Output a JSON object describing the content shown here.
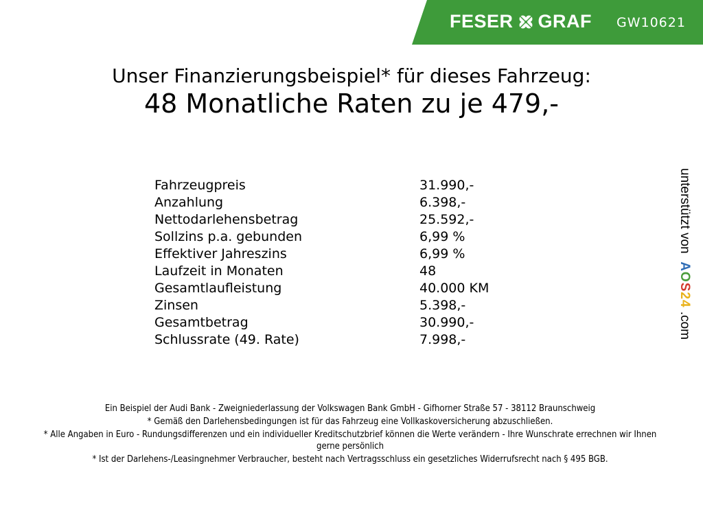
{
  "header": {
    "brand": "FESER GRAF",
    "brand_left": "FESER",
    "brand_right": "GRAF",
    "code": "GW10621",
    "brand_color": "#3e9b3a",
    "icon": "clover-icon"
  },
  "title": {
    "line1": "Unser Finanzierungsbeispiel* für dieses Fahrzeug:",
    "line2": "48 Monatliche Raten zu je 479,-"
  },
  "rows": [
    {
      "label": "Fahrzeugpreis",
      "value": "31.990,-"
    },
    {
      "label": "Anzahlung",
      "value": "6.398,-"
    },
    {
      "label": "Nettodarlehensbetrag",
      "value": "25.592,-"
    },
    {
      "label": "Sollzins p.a. gebunden",
      "value": "6,99 %"
    },
    {
      "label": "Effektiver Jahreszins",
      "value": "6,99 %"
    },
    {
      "label": "Laufzeit in Monaten",
      "value": "48"
    },
    {
      "label": "Gesamtlaufleistung",
      "value": "40.000 KM"
    },
    {
      "label": "Zinsen",
      "value": "5.398,-"
    },
    {
      "label": "Gesamtbetrag",
      "value": "30.990,-"
    },
    {
      "label": "Schlussrate (49. Rate)",
      "value": "7.998,-"
    }
  ],
  "side": {
    "prefix": "unterstützt von",
    "a": "A",
    "o": "O",
    "s": "S",
    "n2": "2",
    "n4": "4",
    "suffix": ".com"
  },
  "footer": [
    "Ein Beispiel der Audi Bank - Zweigniederlassung der Volkswagen Bank GmbH - Gifhorner Straße 57 - 38112 Braunschweig",
    "* Gemäß den Darlehensbedingungen ist für das Fahrzeug eine Vollkaskoversicherung abzuschließen.",
    "* Alle Angaben in Euro - Rundungsdifferenzen und ein individueller Kreditschutzbrief können die Werte verändern - Ihre Wunschrate errechnen wir Ihnen gerne persönlich",
    "* Ist der Darlehens-/Leasingnehmer Verbraucher, besteht nach Vertragsschluss ein gesetzliches Widerrufsrecht nach § 495 BGB."
  ]
}
